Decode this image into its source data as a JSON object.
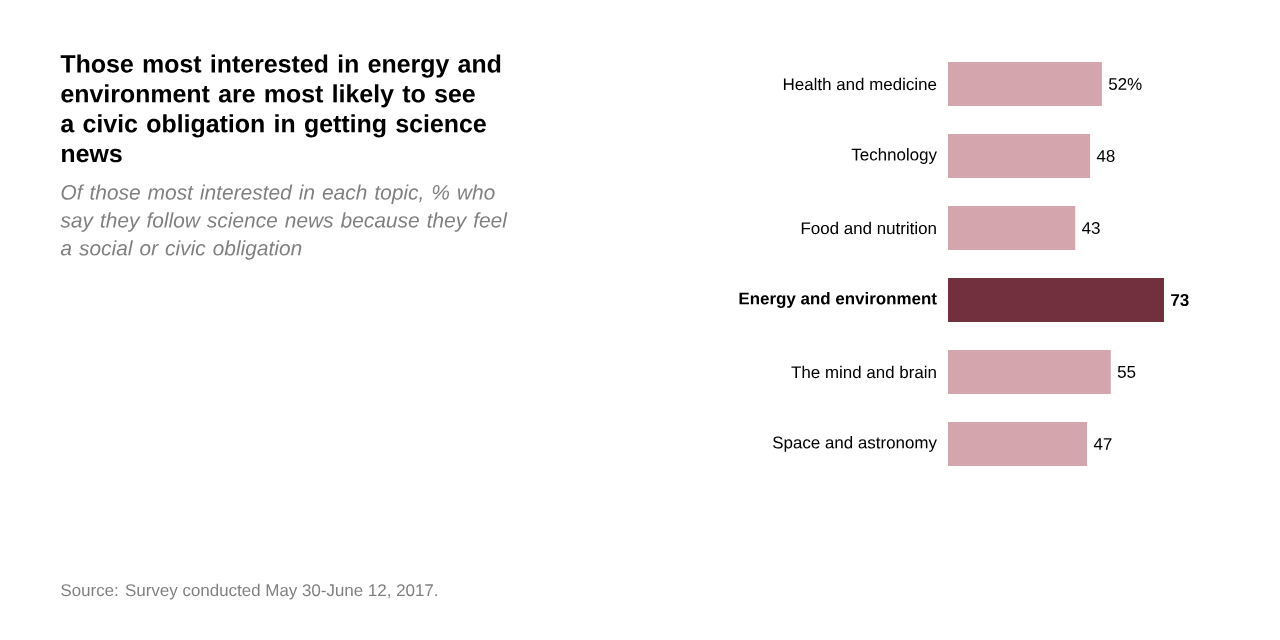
{
  "chart_data": {
    "type": "bar",
    "orientation": "horizontal",
    "title": "Those most interested in energy and environment are most likely to see a civic obligation in getting science news",
    "subtitle": "Of those most interested in each topic, % who say they follow science news because they feel a social or civic obligation",
    "categories": [
      "Health and medicine",
      "Technology",
      "Food and nutrition",
      "Energy and environment",
      "The mind and brain",
      "Space and astronomy"
    ],
    "values": [
      52,
      48,
      43,
      73,
      55,
      47
    ],
    "value_labels": [
      "52%",
      "48",
      "43",
      "73",
      "55",
      "47"
    ],
    "colors": [
      "#d4a5ac",
      "#d4a5ac",
      "#d4a5ac",
      "#722f3e",
      "#d4a5ac",
      "#d4a5ac"
    ],
    "annotations": [
      "Source: Survey conducted May 30-June 12, 2017."
    ]
  }
}
